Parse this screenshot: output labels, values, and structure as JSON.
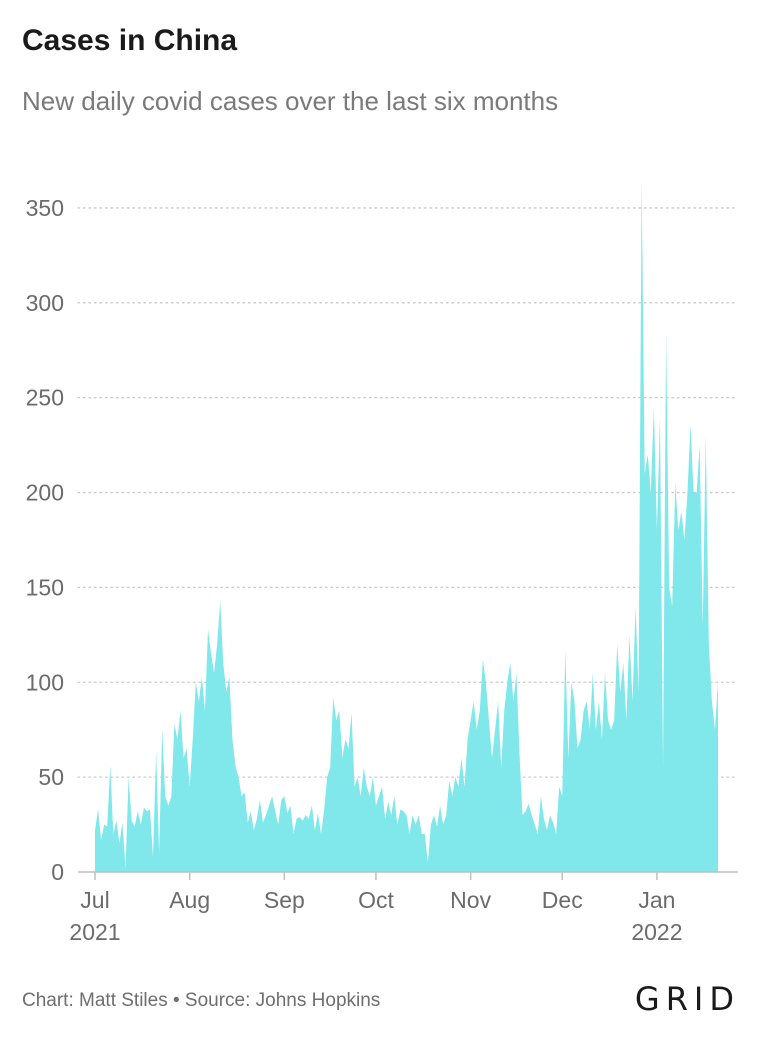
{
  "header": {
    "title": "Cases in China",
    "subtitle": "New daily covid cases over the last six months"
  },
  "footer": {
    "credit": "Chart: Matt Stiles • Source: Johns Hopkins",
    "logo": "GRID"
  },
  "chart_data": {
    "type": "area",
    "title": "Cases in China",
    "subtitle": "New daily covid cases over the last six months",
    "xlabel": "",
    "ylabel": "",
    "ylim": [
      0,
      370
    ],
    "yticks": [
      0,
      50,
      100,
      150,
      200,
      250,
      300,
      350
    ],
    "grid": true,
    "area_color": "#80e8ea",
    "x_ticks": [
      {
        "date": "2021-07-01",
        "label": "Jul",
        "sub": "2021"
      },
      {
        "date": "2021-08-01",
        "label": "Aug",
        "sub": ""
      },
      {
        "date": "2021-09-01",
        "label": "Sep",
        "sub": ""
      },
      {
        "date": "2021-10-01",
        "label": "Oct",
        "sub": ""
      },
      {
        "date": "2021-11-01",
        "label": "Nov",
        "sub": ""
      },
      {
        "date": "2021-12-01",
        "label": "Dec",
        "sub": ""
      },
      {
        "date": "2022-01-01",
        "label": "Jan",
        "sub": "2022"
      }
    ],
    "x_start": "2021-07-01",
    "series": [
      {
        "values": [
          22,
          33,
          17,
          25,
          24,
          56,
          20,
          27,
          15,
          26,
          2,
          50,
          27,
          24,
          32,
          25,
          34,
          32,
          33,
          8,
          64,
          10,
          75,
          40,
          35,
          40,
          78,
          70,
          85,
          60,
          65,
          45,
          70,
          100,
          90,
          103,
          85,
          128,
          115,
          105,
          120,
          143,
          110,
          95,
          103,
          70,
          56,
          50,
          40,
          42,
          26,
          32,
          22,
          28,
          38,
          26,
          30,
          35,
          40,
          32,
          25,
          38,
          40,
          31,
          35,
          20,
          28,
          29,
          27,
          30,
          28,
          35,
          22,
          31,
          20,
          32,
          50,
          55,
          92,
          80,
          85,
          60,
          70,
          65,
          84,
          45,
          50,
          40,
          55,
          45,
          40,
          50,
          35,
          40,
          45,
          28,
          37,
          30,
          40,
          25,
          33,
          32,
          30,
          20,
          30,
          25,
          30,
          20,
          20,
          5,
          25,
          30,
          24,
          35,
          25,
          30,
          48,
          40,
          50,
          45,
          60,
          45,
          70,
          80,
          90,
          75,
          85,
          112,
          100,
          80,
          60,
          75,
          90,
          55,
          85,
          100,
          110,
          90,
          105,
          62,
          30,
          32,
          36,
          30,
          25,
          20,
          40,
          28,
          22,
          30,
          26,
          20,
          45,
          40,
          117,
          60,
          100,
          90,
          65,
          70,
          85,
          90,
          75,
          105,
          75,
          90,
          70,
          105,
          80,
          75,
          80,
          120,
          95,
          110,
          80,
          125,
          90,
          140,
          95,
          365,
          210,
          220,
          200,
          245,
          180,
          240,
          55,
          285,
          150,
          140,
          205,
          180,
          190,
          175,
          200,
          236,
          200,
          200,
          225,
          130,
          230,
          120,
          90,
          75,
          100
        ]
      }
    ]
  }
}
